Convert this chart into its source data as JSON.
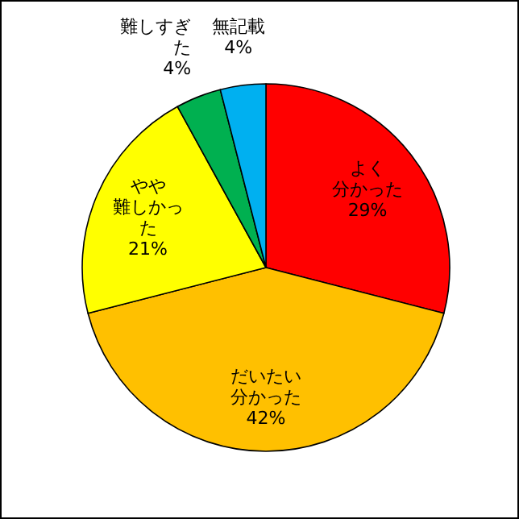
{
  "chart_data": {
    "type": "pie",
    "categories": [
      "よく分かった",
      "だいたい分かった",
      "やや難しかった",
      "難しすぎた",
      "無記載"
    ],
    "values": [
      29,
      42,
      21,
      4,
      4
    ],
    "value_labels": [
      "29%",
      "42%",
      "21%",
      "4%",
      "4%"
    ],
    "colors": [
      "#ff0000",
      "#ffc000",
      "#ffff00",
      "#00b050",
      "#00b0f0"
    ]
  }
}
